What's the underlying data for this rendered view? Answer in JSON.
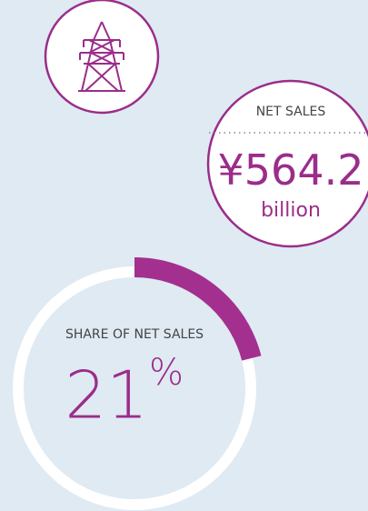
{
  "net_sales": {
    "label": "NET SALES",
    "currency": "¥",
    "value": 564.2,
    "unit": "billion"
  },
  "share": {
    "label": "SHARE OF NET SALES",
    "value": 21,
    "unit": "%"
  }
}
